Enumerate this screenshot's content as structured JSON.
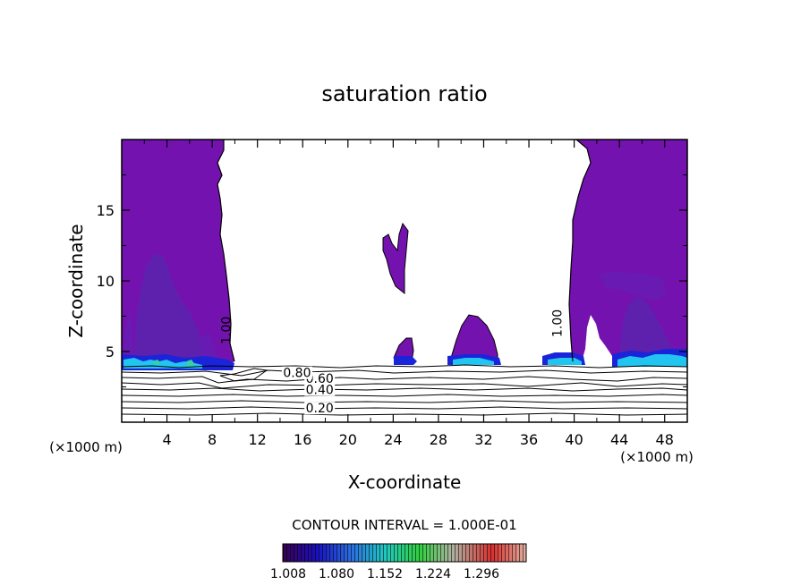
{
  "chart_data": {
    "type": "contour",
    "title": "saturation ratio",
    "xlabel": "X-coordinate",
    "ylabel": "Z-coordinate",
    "x_unit": "(×1000 m)",
    "x_unit_right": "(×1000 m)",
    "xlim": [
      0,
      50
    ],
    "ylim": [
      0,
      20
    ],
    "x_ticks": [
      4,
      8,
      12,
      16,
      20,
      24,
      28,
      32,
      36,
      40,
      44,
      48
    ],
    "x_tick_labels": [
      "4",
      "8",
      "12",
      "16",
      "20",
      "24",
      "28",
      "32",
      "36",
      "40",
      "44",
      "48"
    ],
    "y_ticks": [
      5,
      10,
      15
    ],
    "y_tick_labels": [
      "5",
      "10",
      "15"
    ],
    "contour_labels": [
      {
        "text": "0.20",
        "x": 17.5,
        "z": 1.0
      },
      {
        "text": "0.40",
        "x": 17.5,
        "z": 2.3
      },
      {
        "text": "0.60",
        "x": 17.5,
        "z": 3.1
      },
      {
        "text": "0.80",
        "x": 15.5,
        "z": 3.5
      },
      {
        "text": "1.00",
        "x": 9.2,
        "z": 6.5,
        "rotate": -90
      },
      {
        "text": "1.00",
        "x": 38.5,
        "z": 7.0,
        "rotate": -90
      }
    ],
    "contour_interval_text": "CONTOUR INTERVAL = 1.000E-01",
    "colorbar_labels": [
      "1.008",
      "1.080",
      "1.152",
      "1.224",
      "1.296"
    ],
    "colorbar_range": [
      1.008,
      1.296
    ],
    "colors": {
      "supersaturated_fill": "#7412B0",
      "dark_fill": "#5A22B4",
      "blue_fill": "#1420D8",
      "cyan_fill": "#20C8F0",
      "line": "#000000"
    }
  }
}
